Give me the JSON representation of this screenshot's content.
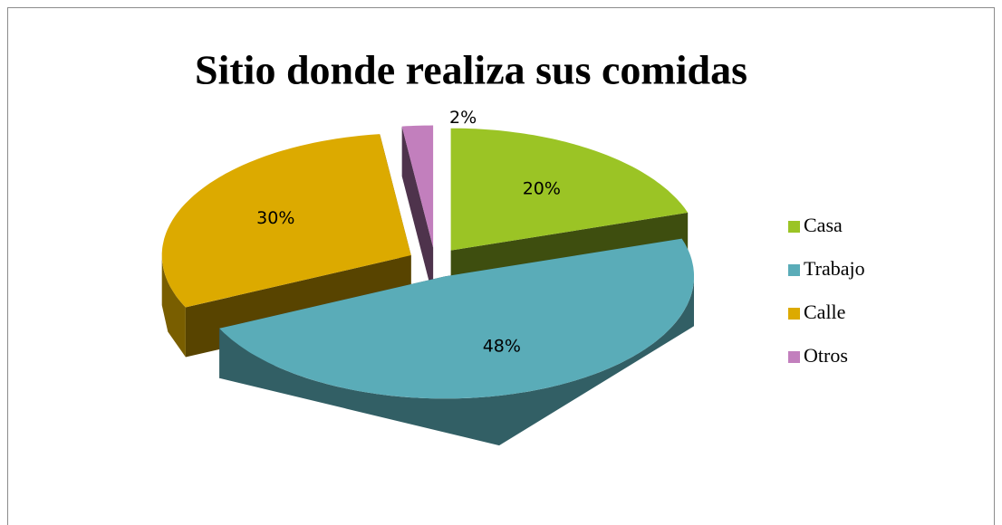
{
  "chart_data": {
    "type": "pie3d",
    "title": "Sitio donde realiza sus comidas",
    "categories": [
      "Casa",
      "Trabajo",
      "Calle",
      "Otros"
    ],
    "values": [
      20,
      48,
      30,
      2
    ],
    "value_labels": [
      "20%",
      "48%",
      "30%",
      "2%"
    ],
    "colors": [
      "#9bc425",
      "#5aacb8",
      "#dcaa00",
      "#c27fbd"
    ],
    "legend": "right"
  }
}
